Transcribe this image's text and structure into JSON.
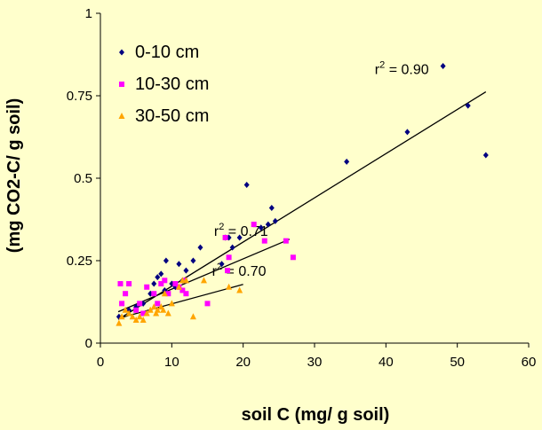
{
  "chart_data": {
    "type": "scatter",
    "xlabel": "soil C (mg/ g soil)",
    "ylabel": "(mg CO2-C/ g soil)",
    "xlim": [
      0,
      60
    ],
    "ylim": [
      0,
      1
    ],
    "x_ticks": [
      "0",
      "10",
      "20",
      "30",
      "40",
      "50",
      "60"
    ],
    "y_ticks": [
      "0",
      "0.25",
      "0.5",
      "0.75",
      "1"
    ],
    "grid": false,
    "legend_position": "top-left",
    "series": [
      {
        "name": "0-10 cm",
        "color": "#000080",
        "marker": "diamond",
        "points": [
          [
            2.6,
            0.08
          ],
          [
            4,
            0.1
          ],
          [
            5,
            0.11
          ],
          [
            6,
            0.12
          ],
          [
            7,
            0.15
          ],
          [
            7.5,
            0.18
          ],
          [
            8,
            0.2
          ],
          [
            8.5,
            0.21
          ],
          [
            9,
            0.16
          ],
          [
            9.2,
            0.25
          ],
          [
            10,
            0.18
          ],
          [
            10.5,
            0.17
          ],
          [
            11,
            0.24
          ],
          [
            11.5,
            0.19
          ],
          [
            12,
            0.22
          ],
          [
            13,
            0.25
          ],
          [
            14,
            0.29
          ],
          [
            17,
            0.24
          ],
          [
            17.5,
            0.32
          ],
          [
            18,
            0.32
          ],
          [
            18.5,
            0.29
          ],
          [
            19.5,
            0.32
          ],
          [
            20.5,
            0.48
          ],
          [
            22.5,
            0.35
          ],
          [
            23.5,
            0.36
          ],
          [
            24,
            0.41
          ],
          [
            24.5,
            0.37
          ],
          [
            34.5,
            0.55
          ],
          [
            43,
            0.64
          ],
          [
            48,
            0.84
          ],
          [
            51.5,
            0.72
          ],
          [
            54,
            0.57
          ]
        ],
        "trendline": {
          "x": [
            2.5,
            54
          ],
          "y": [
            0.072,
            0.762
          ],
          "label": "r² = 0.90"
        }
      },
      {
        "name": "10-30 cm",
        "color": "#ff00ff",
        "marker": "square",
        "points": [
          [
            2.8,
            0.18
          ],
          [
            3,
            0.12
          ],
          [
            3.5,
            0.15
          ],
          [
            4,
            0.18
          ],
          [
            5,
            0.1
          ],
          [
            5.5,
            0.12
          ],
          [
            6,
            0.09
          ],
          [
            6.5,
            0.17
          ],
          [
            7.5,
            0.15
          ],
          [
            8,
            0.12
          ],
          [
            8.5,
            0.18
          ],
          [
            9,
            0.19
          ],
          [
            9.5,
            0.15
          ],
          [
            10.5,
            0.18
          ],
          [
            11,
            0.17
          ],
          [
            11.5,
            0.16
          ],
          [
            11.8,
            0.19
          ],
          [
            12,
            0.15
          ],
          [
            15,
            0.12
          ],
          [
            17.5,
            0.32
          ],
          [
            17.8,
            0.22
          ],
          [
            18,
            0.26
          ],
          [
            21.5,
            0.36
          ],
          [
            23,
            0.31
          ],
          [
            26,
            0.31
          ],
          [
            27,
            0.26
          ]
        ],
        "trendline": {
          "x": [
            2.5,
            26.5
          ],
          "y": [
            0.095,
            0.315
          ],
          "label": "r² = 0.71"
        }
      },
      {
        "name": "30-50 cm",
        "color": "#ffa500",
        "marker": "triangle",
        "points": [
          [
            2.6,
            0.06
          ],
          [
            3,
            0.08
          ],
          [
            3.5,
            0.1
          ],
          [
            4,
            0.09
          ],
          [
            4.5,
            0.08
          ],
          [
            5,
            0.07
          ],
          [
            5.5,
            0.08
          ],
          [
            6,
            0.07
          ],
          [
            6.5,
            0.09
          ],
          [
            7,
            0.1
          ],
          [
            7.5,
            0.11
          ],
          [
            7.8,
            0.09
          ],
          [
            8,
            0.1
          ],
          [
            8.5,
            0.11
          ],
          [
            8.8,
            0.1
          ],
          [
            9,
            0.15
          ],
          [
            9.5,
            0.09
          ],
          [
            10,
            0.12
          ],
          [
            11,
            0.17
          ],
          [
            11.5,
            0.19
          ],
          [
            12,
            0.19
          ],
          [
            13,
            0.08
          ],
          [
            14.5,
            0.19
          ],
          [
            18,
            0.17
          ],
          [
            19.5,
            0.16
          ]
        ],
        "trendline": {
          "x": [
            2.5,
            20
          ],
          "y": [
            0.075,
            0.178
          ],
          "label": "r² = 0.70"
        }
      }
    ]
  }
}
